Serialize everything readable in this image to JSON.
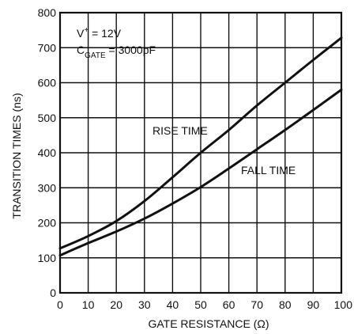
{
  "chart_data": {
    "type": "line",
    "xlabel": "GATE RESISTANCE (Ω)",
    "ylabel": "TRANSITION TIMES (ns)",
    "xlim": [
      0,
      100
    ],
    "ylim": [
      0,
      800
    ],
    "x_ticks": [
      "0",
      "10",
      "20",
      "30",
      "40",
      "50",
      "60",
      "70",
      "80",
      "90",
      "100"
    ],
    "y_ticks": [
      "0",
      "100",
      "200",
      "300",
      "400",
      "500",
      "600",
      "700",
      "800"
    ],
    "grid": true,
    "annotations": {
      "vplus_main": "V",
      "vplus_sup": "+",
      "vplus_rest": " = 12V",
      "cgate_main": "C",
      "cgate_sub": "GATE",
      "cgate_rest": " = 3000pF"
    },
    "series": [
      {
        "name": "RISE TIME",
        "x": [
          0,
          10,
          20,
          30,
          40,
          50,
          60,
          70,
          80,
          90,
          100
        ],
        "y": [
          127,
          162,
          205,
          262,
          330,
          400,
          465,
          535,
          600,
          665,
          728
        ]
      },
      {
        "name": "FALL TIME",
        "x": [
          0,
          10,
          20,
          30,
          40,
          50,
          60,
          70,
          80,
          90,
          100
        ],
        "y": [
          107,
          142,
          175,
          212,
          255,
          302,
          355,
          410,
          465,
          522,
          580
        ]
      }
    ]
  }
}
